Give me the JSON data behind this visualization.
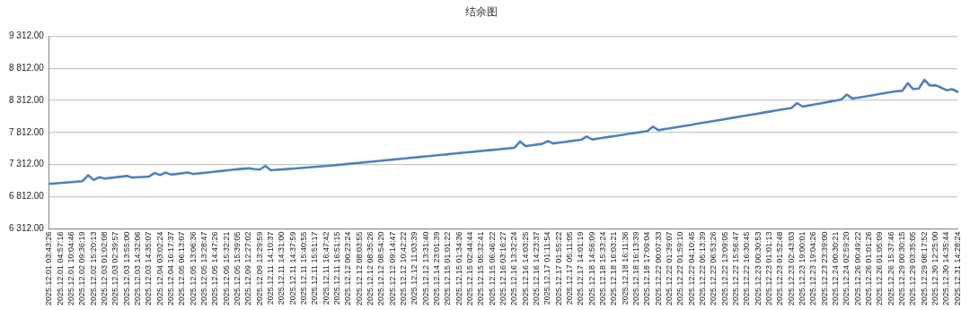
{
  "chart_data": {
    "type": "line",
    "title": "结余图",
    "categories": [
      "2025.12.01 03:43:26",
      null,
      "2025.12.01 04:57:16",
      null,
      "2025.12.01 10:04:46",
      null,
      "2025.12.02 09:36:19",
      null,
      "2025.12.02 15:20:13",
      null,
      "2025.12.03 01:02:08",
      null,
      "2025.12.03 02:39:57",
      null,
      "2025.12.03 13:55:00",
      null,
      "2025.12.03 14:32:06",
      null,
      "2025.12.03 14:35:07",
      null,
      "2025.12.04 03:02:24",
      null,
      "2025.12.04 16:17:37",
      null,
      "2025.12.05 06:13:07",
      null,
      "2025.12.05 13:06:36",
      null,
      "2025.12.05 13:28:47",
      null,
      "2025.12.05 14:47:26",
      null,
      "2025.12.05 15:32:21",
      null,
      "2025.12.05 15:39:05",
      null,
      "2025.12.09 12:27:02",
      null,
      "2025.12.09 13:29:59",
      null,
      "2025.12.11 14:10:37",
      null,
      "2025.12.11 14:31:00",
      null,
      "2025.12.11 14:37:59",
      null,
      "2025.12.11 15:40:55",
      null,
      "2025.12.11 15:51:17",
      null,
      "2025.12.11 16:47:42",
      null,
      "2025.12.11 16:51:15",
      null,
      "2025.12.12 00:23:24",
      null,
      "2025.12.12 08:03:55",
      null,
      "2025.12.12 08:35:26",
      null,
      "2025.12.12 08:54:20",
      null,
      "2025.12.12 09:14:47",
      null,
      "2025.12.12 10:42:22",
      null,
      "2025.12.12 11:03:39",
      null,
      "2025.12.12 13:31:40",
      null,
      "2025.12.14 23:01:39",
      null,
      "2025.12.15 01:01:22",
      null,
      "2025.12.15 01:34:36",
      null,
      "2025.12.15 02:44:44",
      null,
      "2025.12.15 05:32:41",
      null,
      "2025.12.15 06:46:22",
      null,
      "2025.12.16 03:16:27",
      null,
      "2025.12.16 13:32:24",
      null,
      "2025.12.16 14:03:25",
      null,
      "2025.12.16 14:23:37",
      null,
      "2025.12.17 01:11:54",
      null,
      "2025.12.17 01:55:22",
      null,
      "2025.12.17 05:11:05",
      null,
      "2025.12.17 14:01:19",
      null,
      "2025.12.18 14:56:09",
      null,
      "2025.12.18 15:33:24",
      null,
      "2025.12.18 16:03:21",
      null,
      "2025.12.18 16:11:36",
      null,
      "2025.12.18 16:13:39",
      null,
      "2025.12.18 17:09:04",
      null,
      "2025.12.22 00:07:33",
      null,
      "2025.12.22 01:39:07",
      null,
      "2025.12.22 01:59:10",
      null,
      "2025.12.22 04:10:45",
      null,
      "2025.12.22 05:13:39",
      null,
      "2025.12.22 06:53:26",
      null,
      "2025.12.22 13:09:05",
      null,
      "2025.12.22 15:56:47",
      null,
      "2025.12.22 16:30:45",
      null,
      "2025.12.23 00:30:53",
      null,
      "2025.12.23 01:01:13",
      null,
      "2025.12.23 01:52:48",
      null,
      "2025.12.23 02:43:03",
      null,
      "2025.12.23 19:00:01",
      null,
      "2025.12.23 19:04:26",
      null,
      "2025.12.23 23:39:00",
      null,
      "2025.12.24 00:30:21",
      null,
      "2025.12.24 02:59:20",
      null,
      "2025.12.26 00:49:22",
      null,
      "2025.12.26 01:01:26",
      null,
      "2025.12.26 01:05:09",
      null,
      "2025.12.26 15:37:46",
      null,
      "2025.12.29 00:30:15",
      null,
      "2025.12.29 03:35:05",
      null,
      "2025.12.29 08:17:52",
      null,
      "2025.12.30 12:25:00",
      null,
      "2025.12.30 14:35:44",
      null,
      "2025.12.31 14:28:24"
    ],
    "series": [
      {
        "color": "#4f81bd",
        "values": [
          7012,
          7019,
          7026,
          7033,
          7040,
          7047,
          7054,
          7147,
          7074,
          7116,
          7095,
          7105,
          7115,
          7125,
          7136,
          7111,
          7116,
          7121,
          7126,
          7182,
          7150,
          7188,
          7157,
          7167,
          7178,
          7189,
          7167,
          7176,
          7185,
          7194,
          7203,
          7212,
          7222,
          7231,
          7240,
          7248,
          7255,
          7242,
          7235,
          7291,
          7224,
          7231,
          7237,
          7244,
          7250,
          7257,
          7264,
          7270,
          7277,
          7284,
          7290,
          7298,
          7307,
          7315,
          7324,
          7332,
          7340,
          7349,
          7357,
          7365,
          7374,
          7382,
          7391,
          7399,
          7407,
          7416,
          7424,
          7432,
          7441,
          7449,
          7458,
          7466,
          7474,
          7483,
          7491,
          7500,
          7508,
          7516,
          7525,
          7533,
          7541,
          7550,
          7558,
          7567,
          7575,
          7672,
          7600,
          7612,
          7624,
          7635,
          7678,
          7642,
          7653,
          7665,
          7676,
          7688,
          7699,
          7750,
          7704,
          7717,
          7730,
          7743,
          7756,
          7770,
          7783,
          7796,
          7809,
          7822,
          7835,
          7904,
          7847,
          7862,
          7876,
          7891,
          7905,
          7920,
          7934,
          7949,
          7963,
          7978,
          7992,
          8007,
          8021,
          8036,
          8050,
          8065,
          8079,
          8094,
          8108,
          8123,
          8137,
          8152,
          8166,
          8181,
          8195,
          8271,
          8215,
          8231,
          8246,
          8262,
          8278,
          8294,
          8309,
          8325,
          8404,
          8342,
          8356,
          8370,
          8384,
          8398,
          8413,
          8427,
          8441,
          8455,
          8461,
          8580,
          8487,
          8497,
          8631,
          8543,
          8548,
          8512,
          8471,
          8487,
          8445
        ]
      }
    ],
    "ylim": [
      6312,
      9312
    ],
    "yticks": [
      {
        "value": 6312,
        "label": "6 312.00"
      },
      {
        "value": 6812,
        "label": "6 812.00"
      },
      {
        "value": 7312,
        "label": "7 312.00"
      },
      {
        "value": 7812,
        "label": "7 812.00"
      },
      {
        "value": 8312,
        "label": "8 312.00"
      },
      {
        "value": 8812,
        "label": "8 812.00"
      },
      {
        "value": 9312,
        "label": "9 312.00"
      }
    ],
    "grid": "y",
    "marker": "none",
    "line_style": "solid"
  }
}
